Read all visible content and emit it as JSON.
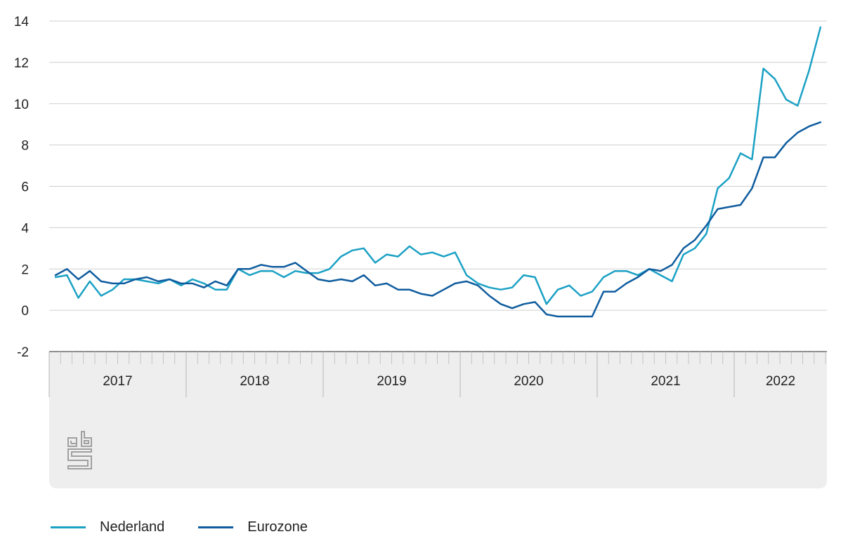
{
  "chart_data": {
    "type": "line",
    "title": "",
    "xlabel": "",
    "ylabel": "",
    "ylim": [
      -2,
      14
    ],
    "yticks": [
      14,
      12,
      10,
      8,
      6,
      4,
      2,
      0,
      -2
    ],
    "grid": true,
    "legend_position": "bottom-left",
    "start_month": "2017-01",
    "year_labels": [
      "2017",
      "2018",
      "2019",
      "2020",
      "2021",
      "2022"
    ],
    "series": [
      {
        "name": "Nederland",
        "color": "#1ba1c4",
        "values": [
          1.6,
          1.7,
          0.6,
          1.4,
          0.7,
          1.0,
          1.5,
          1.5,
          1.4,
          1.3,
          1.5,
          1.2,
          1.5,
          1.3,
          1.0,
          1.0,
          2.0,
          1.7,
          1.9,
          1.9,
          1.6,
          1.9,
          1.8,
          1.8,
          2.0,
          2.6,
          2.9,
          3.0,
          2.3,
          2.7,
          2.6,
          3.1,
          2.7,
          2.8,
          2.6,
          2.8,
          1.7,
          1.3,
          1.1,
          1.0,
          1.1,
          1.7,
          1.6,
          0.3,
          1.0,
          1.2,
          0.7,
          0.9,
          1.6,
          1.9,
          1.9,
          1.7,
          2.0,
          1.7,
          1.4,
          2.7,
          3.0,
          3.7,
          5.9,
          6.4,
          7.6,
          7.3,
          11.7,
          11.2,
          10.2,
          9.9,
          11.6,
          13.7
        ]
      },
      {
        "name": "Eurozone",
        "color": "#0f5c9e",
        "values": [
          1.7,
          2.0,
          1.5,
          1.9,
          1.4,
          1.3,
          1.3,
          1.5,
          1.6,
          1.4,
          1.5,
          1.3,
          1.3,
          1.1,
          1.4,
          1.2,
          2.0,
          2.0,
          2.2,
          2.1,
          2.1,
          2.3,
          1.9,
          1.5,
          1.4,
          1.5,
          1.4,
          1.7,
          1.2,
          1.3,
          1.0,
          1.0,
          0.8,
          0.7,
          1.0,
          1.3,
          1.4,
          1.2,
          0.7,
          0.3,
          0.1,
          0.3,
          0.4,
          -0.2,
          -0.3,
          -0.3,
          -0.3,
          -0.3,
          0.9,
          0.9,
          1.3,
          1.6,
          2.0,
          1.9,
          2.2,
          3.0,
          3.4,
          4.1,
          4.9,
          5.0,
          5.1,
          5.9,
          7.4,
          7.4,
          8.1,
          8.6,
          8.9,
          9.1
        ]
      }
    ]
  }
}
